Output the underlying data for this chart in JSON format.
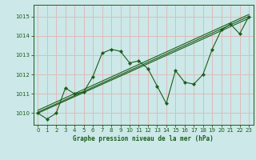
{
  "title": "Graphe pression niveau de la mer (hPa)",
  "bg_color": "#cce8e8",
  "grid_color": "#ddbbbb",
  "line_color": "#1a5e1a",
  "marker_color": "#1a5e1a",
  "xlim": [
    -0.5,
    23.5
  ],
  "ylim": [
    1009.4,
    1015.6
  ],
  "xticks": [
    0,
    1,
    2,
    3,
    4,
    5,
    6,
    7,
    8,
    9,
    10,
    11,
    12,
    13,
    14,
    15,
    16,
    17,
    18,
    19,
    20,
    21,
    22,
    23
  ],
  "yticks": [
    1010,
    1011,
    1012,
    1013,
    1014,
    1015
  ],
  "series": [
    [
      0,
      1010.0
    ],
    [
      1,
      1009.7
    ],
    [
      2,
      1010.0
    ],
    [
      3,
      1011.3
    ],
    [
      4,
      1011.0
    ],
    [
      5,
      1011.1
    ],
    [
      6,
      1011.9
    ],
    [
      7,
      1013.1
    ],
    [
      8,
      1013.3
    ],
    [
      9,
      1013.2
    ],
    [
      10,
      1012.6
    ],
    [
      11,
      1012.7
    ],
    [
      12,
      1012.3
    ],
    [
      13,
      1011.4
    ],
    [
      14,
      1010.5
    ],
    [
      15,
      1012.2
    ],
    [
      16,
      1011.6
    ],
    [
      17,
      1011.5
    ],
    [
      18,
      1012.0
    ],
    [
      19,
      1013.3
    ],
    [
      20,
      1014.3
    ],
    [
      21,
      1014.6
    ],
    [
      22,
      1014.1
    ],
    [
      23,
      1015.0
    ]
  ],
  "trend_lines": [
    [
      [
        0,
        1010.0
      ],
      [
        23,
        1014.9
      ]
    ],
    [
      [
        0,
        1010.05
      ],
      [
        23,
        1015.0
      ]
    ],
    [
      [
        0,
        1010.15
      ],
      [
        23,
        1015.1
      ]
    ]
  ],
  "tick_fontsize": 5,
  "label_fontsize": 5.5
}
